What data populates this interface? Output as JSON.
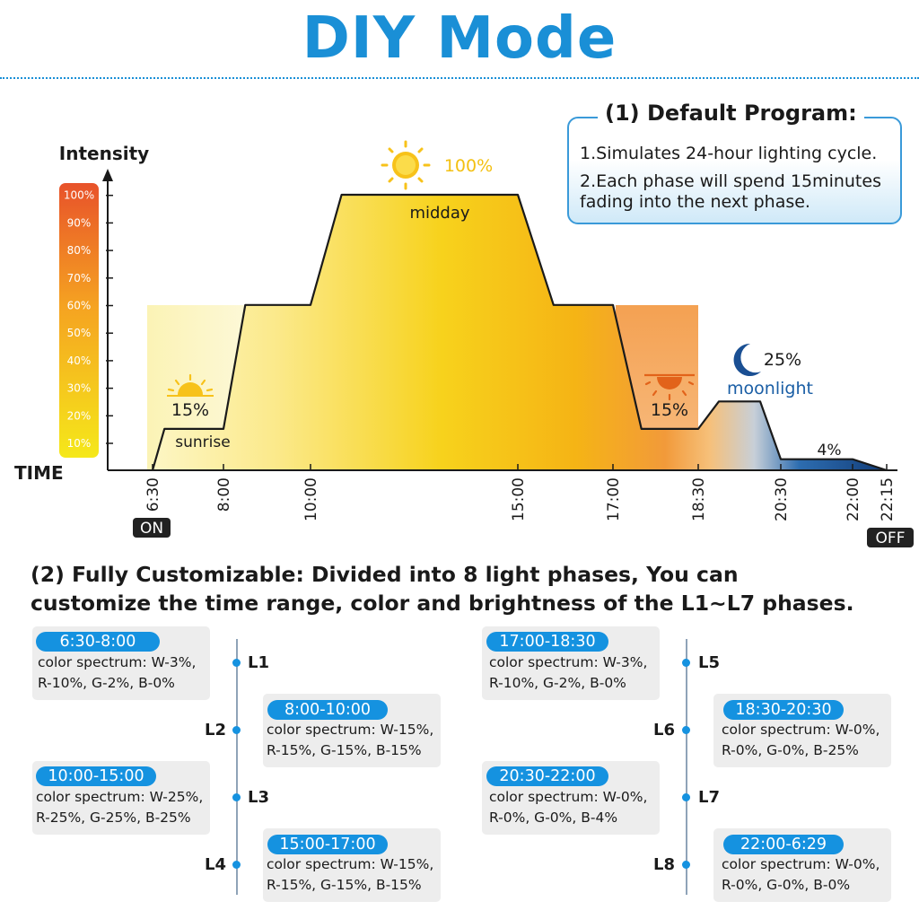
{
  "header": {
    "title": "DIY Mode"
  },
  "info": {
    "title": "(1) Default Program:",
    "lines": [
      "1.Simulates 24-hour lighting cycle.",
      "2.Each phase will spend 15minutes",
      "fading into the next phase."
    ]
  },
  "section2": {
    "title_line1": "(2) Fully Customizable: Divided into 8 light phases, You can",
    "title_line2": "customize the time range, color and brightness of the L1~L7 phases."
  },
  "phases": [
    {
      "id": "L1",
      "range": "6:30-8:00",
      "spec1": "color spectrum: W-3%,",
      "spec2": "R-10%, G-2%, B-0%"
    },
    {
      "id": "L2",
      "range": "8:00-10:00",
      "spec1": "color spectrum: W-15%,",
      "spec2": "R-15%, G-15%, B-15%"
    },
    {
      "id": "L3",
      "range": "10:00-15:00",
      "spec1": "color spectrum: W-25%,",
      "spec2": "R-25%, G-25%, B-25%"
    },
    {
      "id": "L4",
      "range": "15:00-17:00",
      "spec1": "color spectrum: W-15%,",
      "spec2": "R-15%, G-15%, B-15%"
    },
    {
      "id": "L5",
      "range": "17:00-18:30",
      "spec1": "color spectrum: W-3%,",
      "spec2": "R-10%, G-2%, B-0%"
    },
    {
      "id": "L6",
      "range": "18:30-20:30",
      "spec1": "color spectrum: W-0%,",
      "spec2": "R-0%, G-0%, B-25%"
    },
    {
      "id": "L7",
      "range": "20:30-22:00",
      "spec1": "color spectrum: W-0%,",
      "spec2": "R-0%, G-0%, B-4%"
    },
    {
      "id": "L8",
      "range": "22:00-6:29",
      "spec1": "color spectrum: W-0%,",
      "spec2": "R-0%, G-0%, B-0%"
    }
  ],
  "chart_data": {
    "type": "area",
    "ylabel": "Intensity",
    "xlabel": "TIME",
    "y_ticks": [
      "10%",
      "20%",
      "30%",
      "40%",
      "50%",
      "60%",
      "70%",
      "80%",
      "90%",
      "100%"
    ],
    "x_ticks": [
      "6:30",
      "8:00",
      "10:00",
      "15:00",
      "17:00",
      "18:30",
      "20:30",
      "22:00",
      "22:15"
    ],
    "on_label": "ON",
    "off_label": "OFF",
    "series": [
      {
        "x": [
          "6:30",
          "6:45",
          "8:00",
          "8:30",
          "10:00",
          "10:45",
          "15:00",
          "15:45",
          "17:00",
          "17:30",
          "18:30",
          "19:00",
          "20:00",
          "20:30",
          "22:00",
          "22:15"
        ],
        "values": [
          0,
          15,
          15,
          60,
          60,
          100,
          100,
          60,
          60,
          15,
          15,
          25,
          25,
          4,
          4,
          0
        ]
      }
    ],
    "annotations": [
      {
        "text": "15%",
        "x": "7:30",
        "y": 15
      },
      {
        "text": "sunrise",
        "x": "7:30",
        "y": 10
      },
      {
        "text": "100%",
        "x": "12:00",
        "y": 100
      },
      {
        "text": "midday",
        "x": "12:00",
        "y": 95
      },
      {
        "text": "15%",
        "x": "18:00",
        "y": 15
      },
      {
        "text": "25%",
        "x": "20:00",
        "y": 35
      },
      {
        "text": "moonlight",
        "x": "20:00",
        "y": 30
      },
      {
        "text": "4%",
        "x": "21:30",
        "y": 8
      }
    ],
    "icons": [
      "sunrise-icon",
      "sun-icon",
      "sunset-icon",
      "moon-icon"
    ],
    "colors": {
      "brand_blue": "#1a8fd6",
      "yellow": "#f5d400",
      "orange": "#f08a1e",
      "night_blue": "#1a4f93"
    }
  }
}
